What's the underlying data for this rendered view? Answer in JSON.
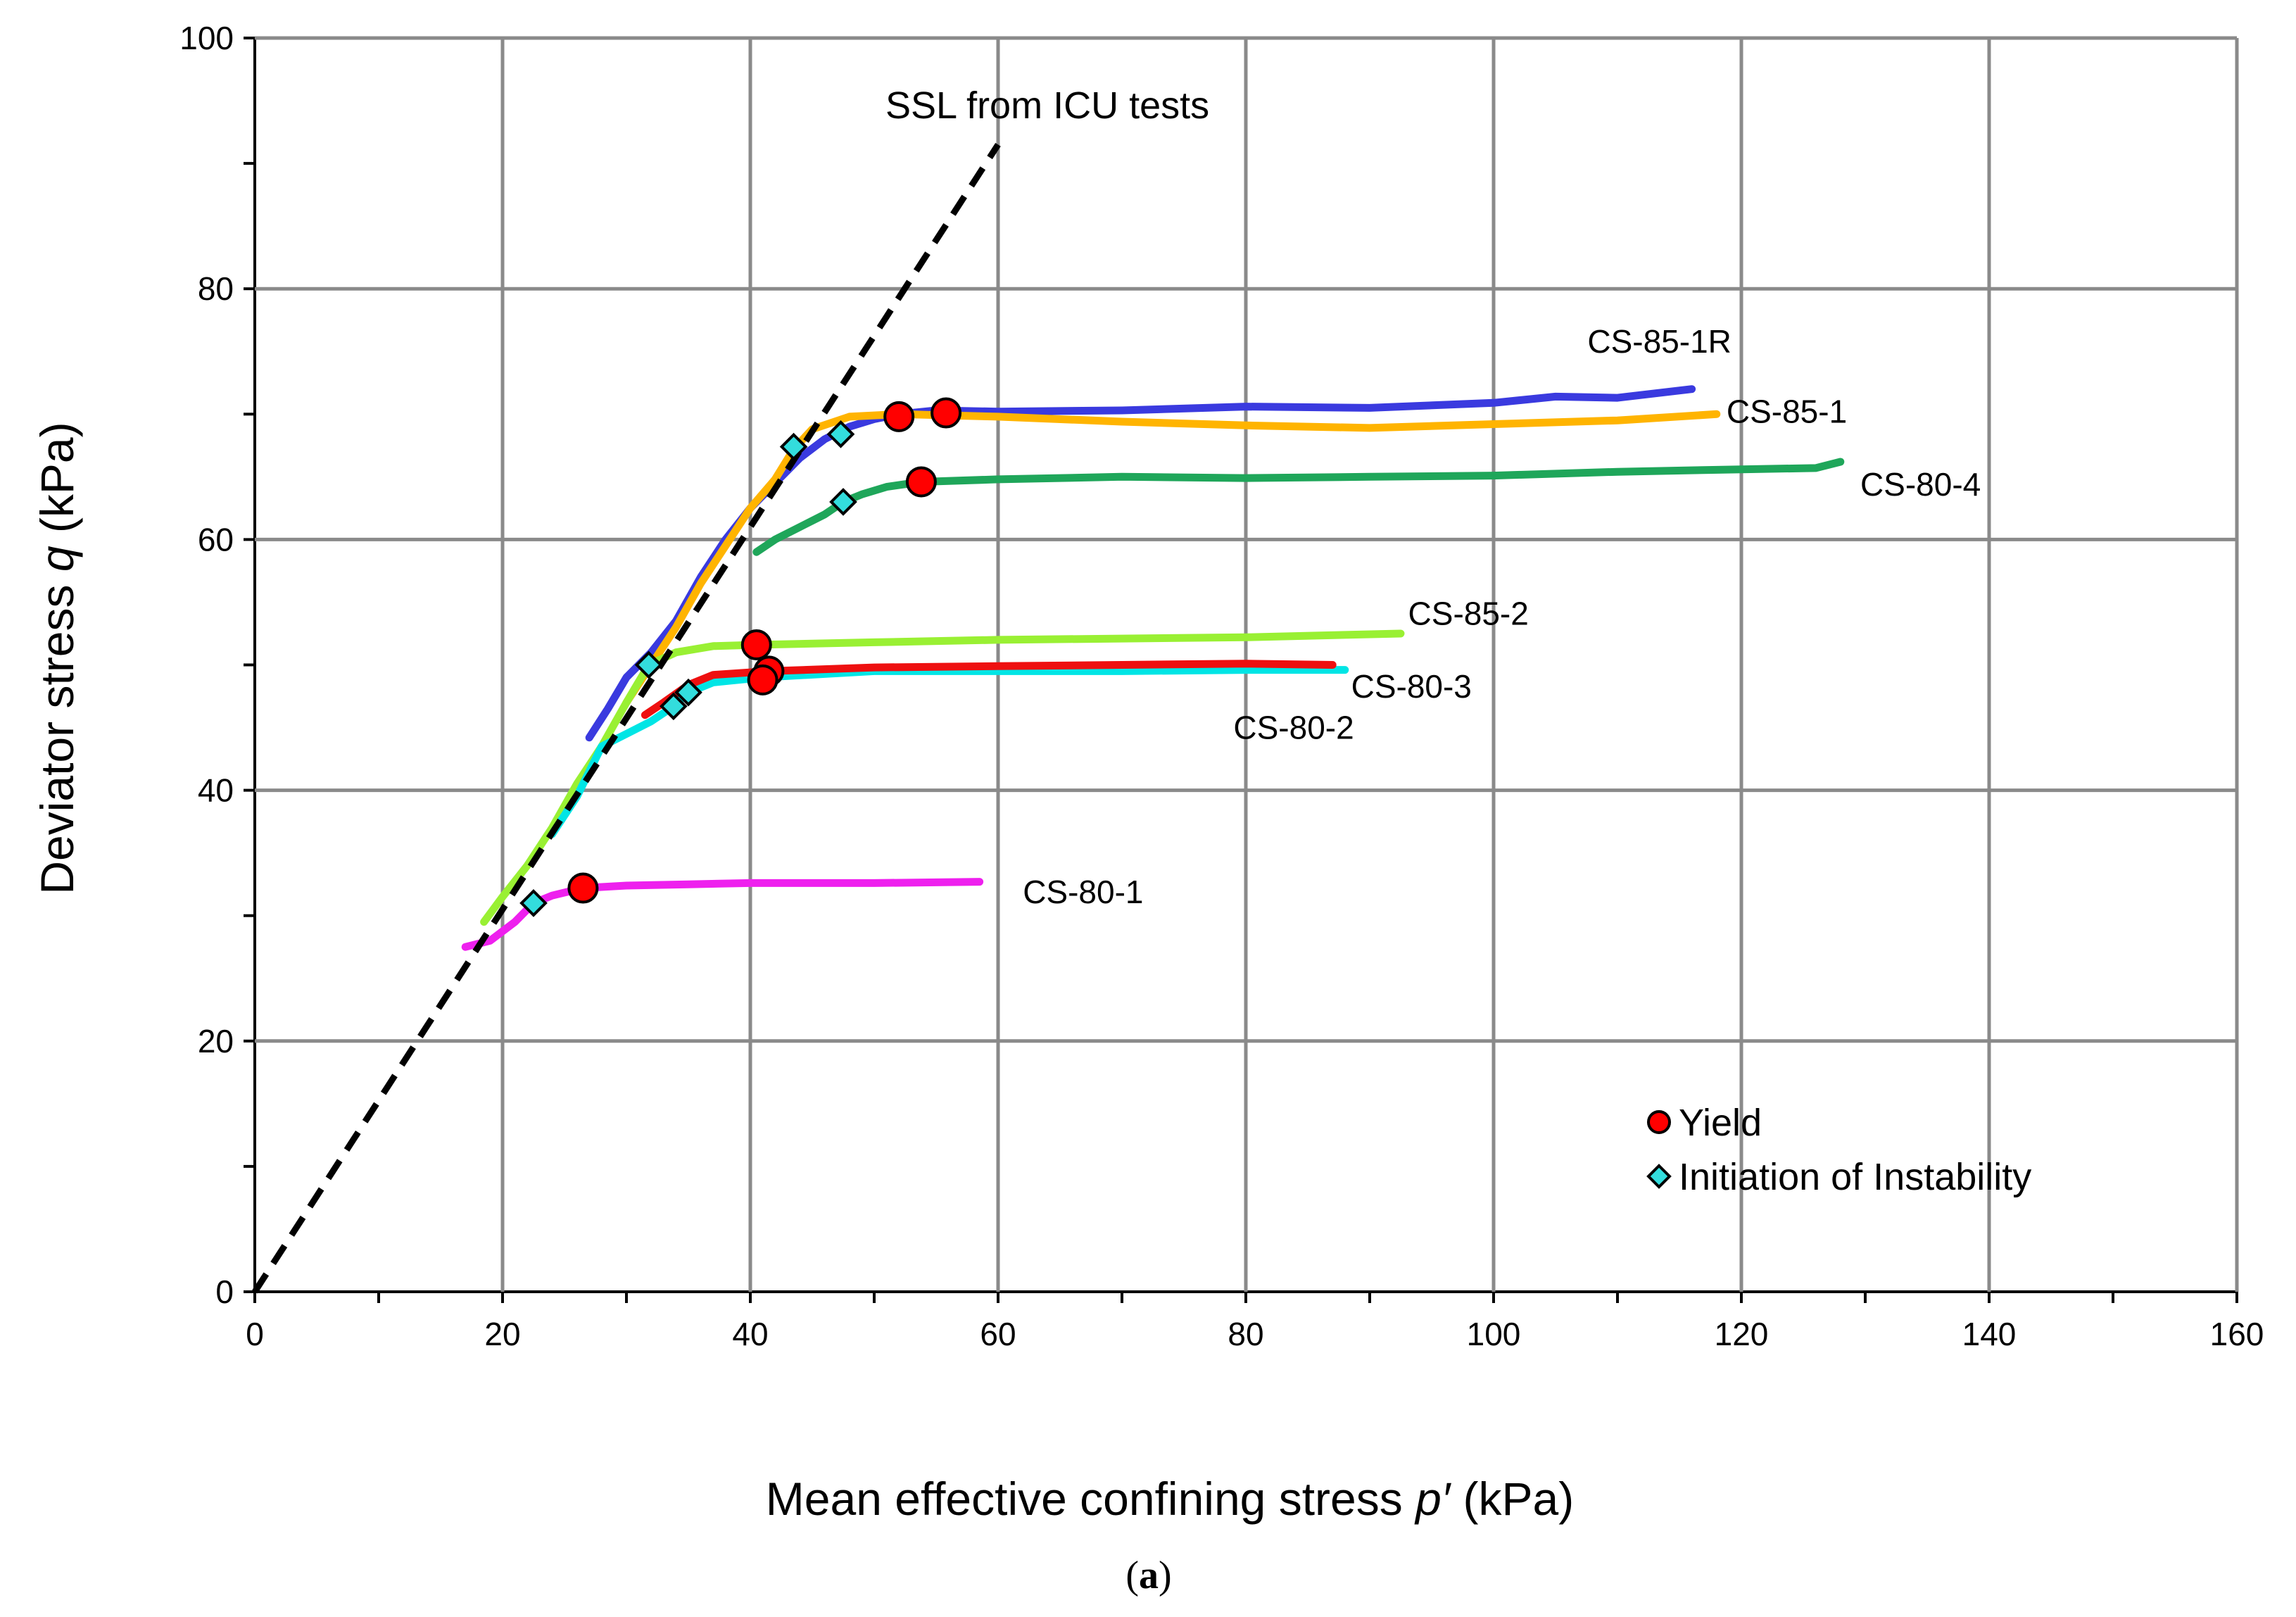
{
  "chart_data": {
    "type": "line",
    "title": "",
    "xlabel": "Mean effective confining stress ",
    "xlabel_symbol": "p′",
    "xlabel_unit": " (kPa)",
    "ylabel": "Deviator stress  ",
    "ylabel_symbol": "q",
    "ylabel_unit": " (kPa)",
    "xlim": [
      0,
      160
    ],
    "ylim": [
      0,
      100
    ],
    "x_ticks": [
      0,
      20,
      40,
      60,
      80,
      100,
      120,
      140,
      160
    ],
    "y_ticks": [
      0,
      20,
      40,
      60,
      80,
      100
    ],
    "x_tick_labels": [
      "0",
      "20",
      "40",
      "60",
      "80",
      "100",
      "120",
      "140",
      "160"
    ],
    "y_tick_labels": [
      "0",
      "20",
      "40",
      "60",
      "80",
      "100"
    ],
    "grid": true,
    "caption_text": "a",
    "reference_line": {
      "name": "SSL from ICU tests",
      "color": "#000000",
      "points": [
        [
          0,
          0
        ],
        [
          60,
          91.5
        ]
      ]
    },
    "series": [
      {
        "name": "CS-85-1R",
        "color": "#3a3adf",
        "label": "CS-85-1R",
        "points": [
          [
            27,
            44.2
          ],
          [
            28.5,
            46.5
          ],
          [
            30,
            49
          ],
          [
            32,
            51
          ],
          [
            34,
            53.5
          ],
          [
            36,
            57
          ],
          [
            38,
            60
          ],
          [
            40,
            62.5
          ],
          [
            42,
            64.5
          ],
          [
            44,
            66.5
          ],
          [
            46,
            68
          ],
          [
            48,
            69
          ],
          [
            50,
            69.6
          ],
          [
            52,
            70
          ],
          [
            55,
            70.3
          ],
          [
            60,
            70.2
          ],
          [
            70,
            70.3
          ],
          [
            80,
            70.6
          ],
          [
            90,
            70.5
          ],
          [
            100,
            70.9
          ],
          [
            105,
            71.4
          ],
          [
            110,
            71.3
          ],
          [
            116,
            72
          ]
        ]
      },
      {
        "name": "CS-85-1",
        "color": "#ffb400",
        "label": "CS-85-1",
        "points": [
          [
            30,
            47
          ],
          [
            32,
            50
          ],
          [
            34,
            53
          ],
          [
            36,
            56.5
          ],
          [
            38,
            59.5
          ],
          [
            40,
            62.5
          ],
          [
            42,
            64.8
          ],
          [
            43.5,
            67.2
          ],
          [
            45,
            68.8
          ],
          [
            48,
            69.8
          ],
          [
            52,
            70
          ],
          [
            60,
            69.8
          ],
          [
            70,
            69.4
          ],
          [
            80,
            69.1
          ],
          [
            90,
            68.9
          ],
          [
            100,
            69.2
          ],
          [
            110,
            69.5
          ],
          [
            118,
            70
          ]
        ]
      },
      {
        "name": "CS-80-4",
        "color": "#1fa65a",
        "label": "CS-80-4",
        "points": [
          [
            40.5,
            59
          ],
          [
            42,
            60
          ],
          [
            44,
            61
          ],
          [
            46,
            62
          ],
          [
            47.5,
            63
          ],
          [
            49,
            63.6
          ],
          [
            51,
            64.2
          ],
          [
            53.8,
            64.6
          ],
          [
            60,
            64.8
          ],
          [
            70,
            65
          ],
          [
            80,
            64.9
          ],
          [
            90,
            65
          ],
          [
            100,
            65.1
          ],
          [
            110,
            65.4
          ],
          [
            120,
            65.6
          ],
          [
            126,
            65.7
          ],
          [
            128,
            66.2
          ]
        ]
      },
      {
        "name": "CS-85-2",
        "color": "#99f033",
        "label": "CS-85-2",
        "points": [
          [
            18.5,
            29.5
          ],
          [
            20,
            31.5
          ],
          [
            22,
            34
          ],
          [
            24,
            37
          ],
          [
            26,
            40.5
          ],
          [
            28,
            43.5
          ],
          [
            30,
            47
          ],
          [
            31.8,
            50
          ],
          [
            34,
            51
          ],
          [
            37,
            51.5
          ],
          [
            40.5,
            51.6
          ],
          [
            50,
            51.8
          ],
          [
            60,
            52
          ],
          [
            70,
            52.1
          ],
          [
            80,
            52.2
          ],
          [
            92.5,
            52.5
          ]
        ]
      },
      {
        "name": "CS-80-3",
        "color": "#00e5e5",
        "label": "CS-80-3",
        "points": [
          [
            24,
            36.5
          ],
          [
            26,
            39.5
          ],
          [
            28,
            43.5
          ],
          [
            30,
            44.5
          ],
          [
            32,
            45.5
          ],
          [
            33.8,
            46.7
          ],
          [
            35,
            47.8
          ],
          [
            37,
            48.6
          ],
          [
            41,
            49
          ],
          [
            50,
            49.5
          ],
          [
            60,
            49.5
          ],
          [
            70,
            49.5
          ],
          [
            80,
            49.6
          ],
          [
            88,
            49.6
          ]
        ]
      },
      {
        "name": "CS-80-2",
        "color": "#ee1010",
        "label": "CS-80-2",
        "points": [
          [
            31.5,
            46
          ],
          [
            33,
            47
          ],
          [
            35,
            48.4
          ],
          [
            37,
            49.2
          ],
          [
            41.5,
            49.5
          ],
          [
            50,
            49.8
          ],
          [
            60,
            49.9
          ],
          [
            70,
            50
          ],
          [
            80,
            50.1
          ],
          [
            87,
            50
          ]
        ]
      },
      {
        "name": "CS-80-1",
        "color": "#ee20ee",
        "label": "CS-80-1",
        "points": [
          [
            17,
            27.5
          ],
          [
            19,
            28
          ],
          [
            21,
            29.5
          ],
          [
            22.5,
            31
          ],
          [
            24,
            31.6
          ],
          [
            26.5,
            32.2
          ],
          [
            30,
            32.4
          ],
          [
            35,
            32.5
          ],
          [
            40,
            32.6
          ],
          [
            50,
            32.6
          ],
          [
            58.5,
            32.7
          ]
        ]
      }
    ],
    "yield_points": {
      "legend": "Yield",
      "color": "#ff0000",
      "points": [
        [
          26.5,
          32.2
        ],
        [
          40.5,
          51.6
        ],
        [
          41.5,
          49.5
        ],
        [
          41,
          48.8
        ],
        [
          52,
          69.8
        ],
        [
          55.8,
          70.1
        ],
        [
          53.8,
          64.6
        ]
      ]
    },
    "instability_points": {
      "legend": "Initiation of Instability",
      "color": "#33dddd",
      "points": [
        [
          22.5,
          31
        ],
        [
          31.8,
          50
        ],
        [
          33.8,
          46.7
        ],
        [
          35,
          47.8
        ],
        [
          43.5,
          67.4
        ],
        [
          47.3,
          68.4
        ],
        [
          47.5,
          63
        ]
      ]
    },
    "series_label_texts": [
      "CS-85-1R",
      "CS-85-1",
      "CS-80-4",
      "CS-85-2",
      "CS-80-3",
      "CS-80-2",
      "CS-80-1"
    ]
  }
}
